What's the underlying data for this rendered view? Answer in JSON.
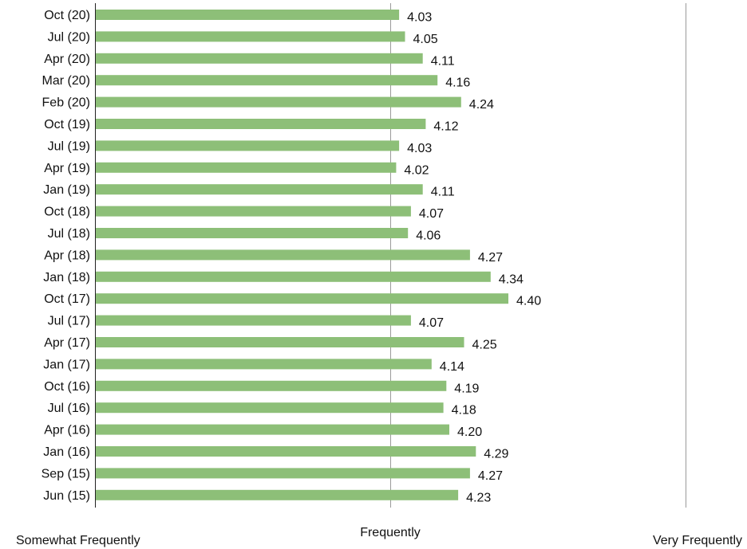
{
  "chart_data": {
    "type": "bar",
    "orientation": "horizontal",
    "categories": [
      "Oct (20)",
      "Jul (20)",
      "Apr (20)",
      "Mar (20)",
      "Feb (20)",
      "Oct (19)",
      "Jul (19)",
      "Apr (19)",
      "Jan (19)",
      "Oct (18)",
      "Jul (18)",
      "Apr (18)",
      "Jan (18)",
      "Oct (17)",
      "Jul (17)",
      "Apr (17)",
      "Jan (17)",
      "Oct (16)",
      "Jul (16)",
      "Apr (16)",
      "Jan (16)",
      "Sep (15)",
      "Jun (15)"
    ],
    "values": [
      4.03,
      4.05,
      4.11,
      4.16,
      4.24,
      4.12,
      4.03,
      4.02,
      4.11,
      4.07,
      4.06,
      4.27,
      4.34,
      4.4,
      4.07,
      4.25,
      4.14,
      4.19,
      4.18,
      4.2,
      4.29,
      4.27,
      4.23
    ],
    "value_labels": [
      "4.03",
      "4.05",
      "4.11",
      "4.16",
      "4.24",
      "4.12",
      "4.03",
      "4.02",
      "4.11",
      "4.07",
      "4.06",
      "4.27",
      "4.34",
      "4.40",
      "4.07",
      "4.25",
      "4.14",
      "4.19",
      "4.18",
      "4.20",
      "4.29",
      "4.27",
      "4.23"
    ],
    "xlim": [
      3,
      5
    ],
    "x_ticks": [
      {
        "value": 3,
        "label": "Somewhat Frequently"
      },
      {
        "value": 4,
        "label": "Frequently"
      },
      {
        "value": 5,
        "label": "Very Frequently"
      }
    ],
    "title": "",
    "xlabel": "",
    "ylabel": "",
    "bar_color": "#8dbf78",
    "gridlines": true,
    "legend": "none"
  }
}
